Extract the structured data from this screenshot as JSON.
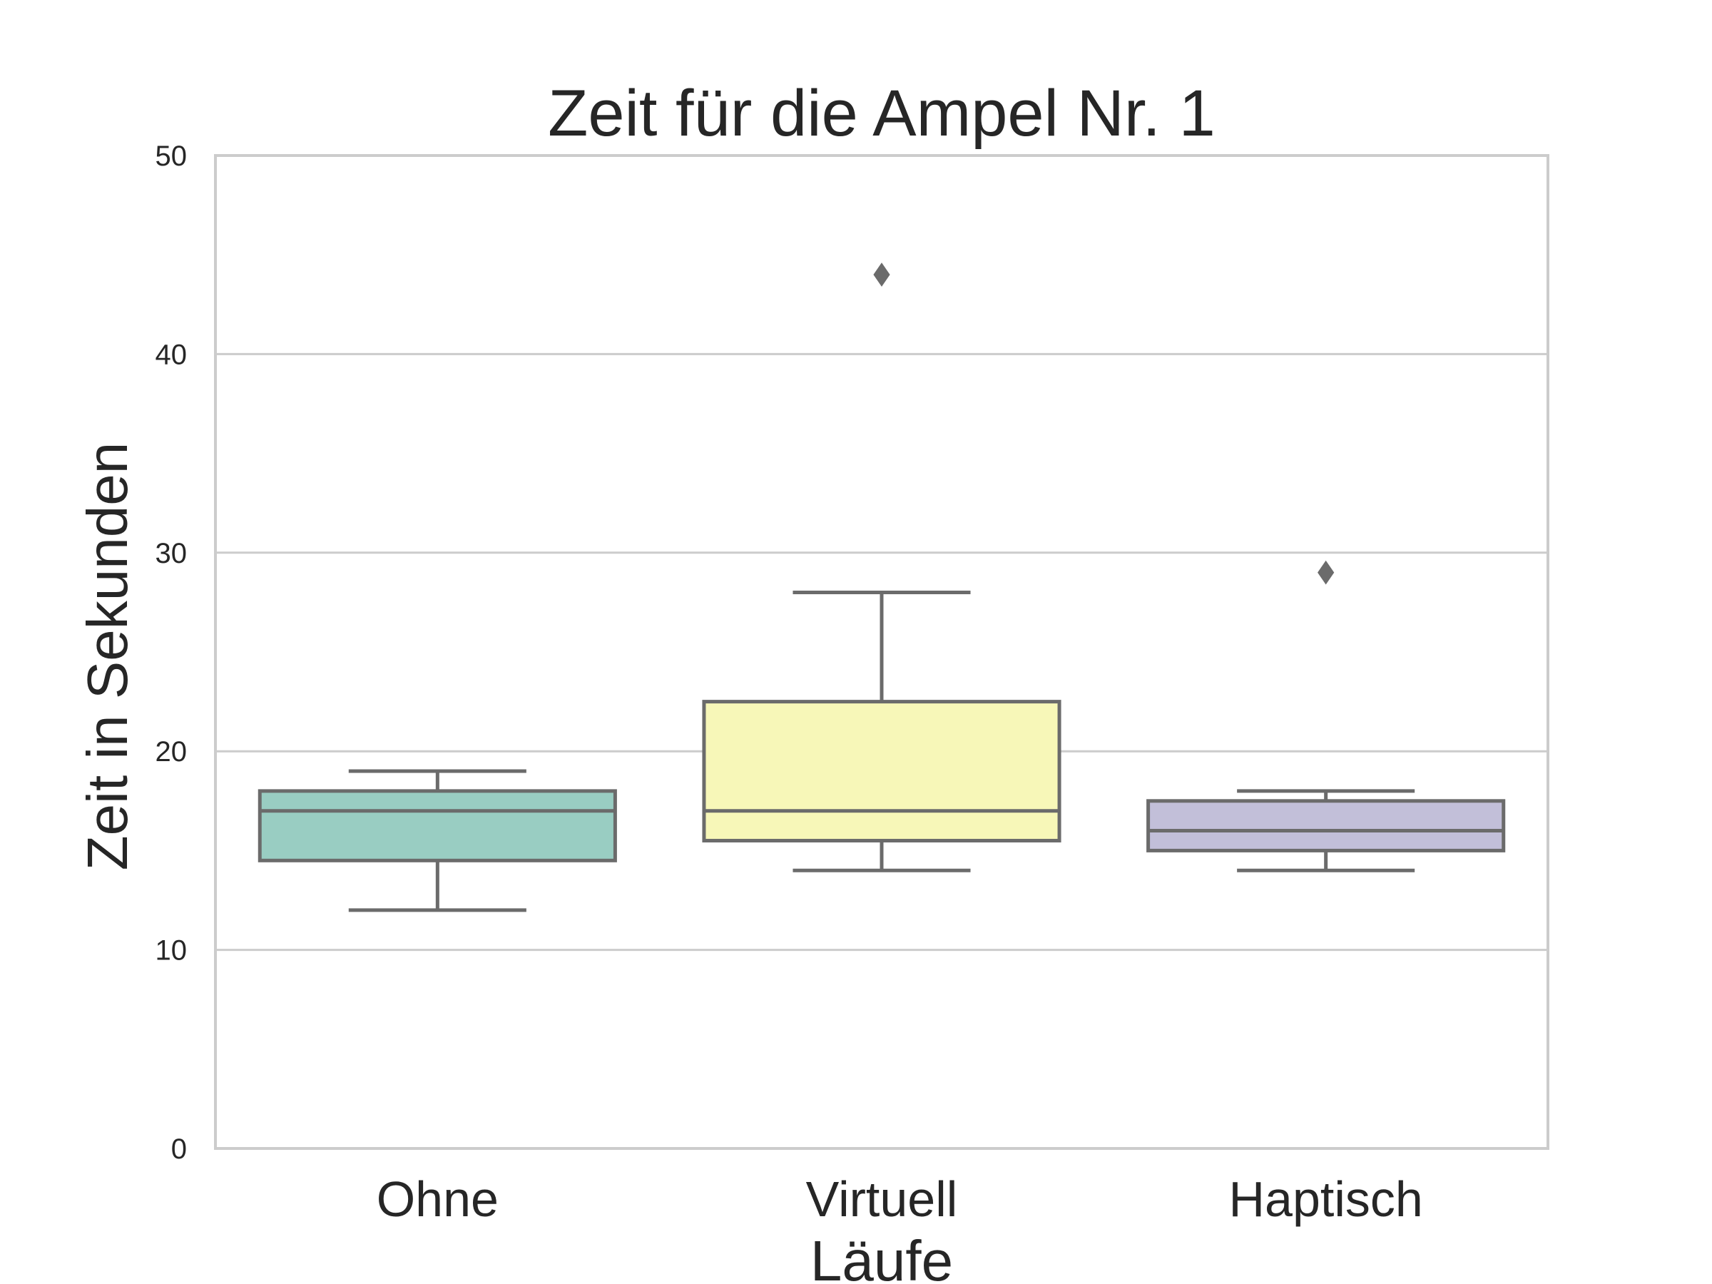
{
  "chart_data": {
    "type": "box",
    "title": "Zeit für die Ampel Nr. 1",
    "xlabel": "Läufe",
    "ylabel": "Zeit in Sekunden",
    "ylim": [
      0,
      50
    ],
    "yticks": [
      "0",
      "10",
      "20",
      "30",
      "40",
      "50"
    ],
    "grid": "horizontal",
    "categories": [
      "Ohne",
      "Virtuell",
      "Haptisch"
    ],
    "boxes": [
      {
        "category": "Ohne",
        "whisker_low": 12,
        "q1": 14.5,
        "median": 17,
        "q3": 18,
        "whisker_high": 19,
        "outliers": [],
        "color": "#99cdc2"
      },
      {
        "category": "Virtuell",
        "whisker_low": 14,
        "q1": 15.5,
        "median": 17,
        "q3": 22.5,
        "whisker_high": 28,
        "outliers": [
          44
        ],
        "color": "#f7f7b8"
      },
      {
        "category": "Haptisch",
        "whisker_low": 14,
        "q1": 15,
        "median": 16,
        "q3": 17.5,
        "whisker_high": 18,
        "outliers": [
          29
        ],
        "color": "#c2bfd9"
      }
    ]
  },
  "colors": {
    "line": "#6b6b6b",
    "grid": "#cccccc",
    "frame": "#cccccc"
  }
}
